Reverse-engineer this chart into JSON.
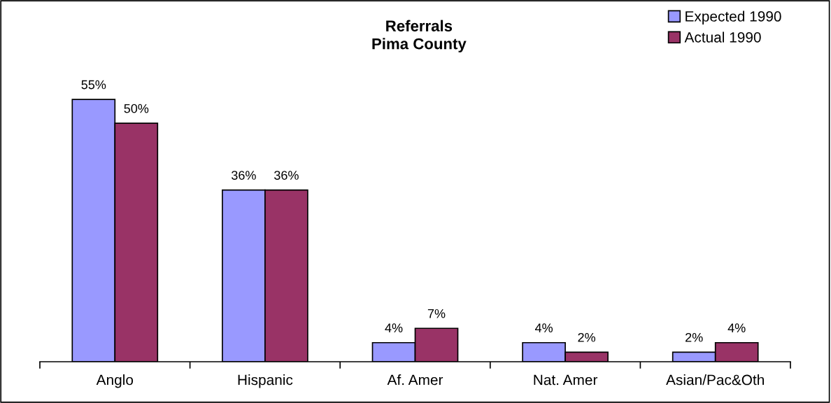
{
  "chart_data": {
    "type": "bar",
    "title": "Referrals\nPima County",
    "categories": [
      "Anglo",
      "Hispanic",
      "Af. Amer",
      "Nat. Amer",
      "Asian/Pac&Oth"
    ],
    "series": [
      {
        "name": "Expected 1990",
        "color": "#9999ff",
        "values": [
          55,
          36,
          4,
          4,
          2
        ],
        "value_labels": [
          "55%",
          "36%",
          "4%",
          "4%",
          "2%"
        ]
      },
      {
        "name": "Actual 1990",
        "color": "#993366",
        "values": [
          50,
          36,
          7,
          2,
          4
        ],
        "value_labels": [
          "50%",
          "36%",
          "7%",
          "2%",
          "4%"
        ]
      }
    ],
    "legend": "top right",
    "grid": false
  }
}
